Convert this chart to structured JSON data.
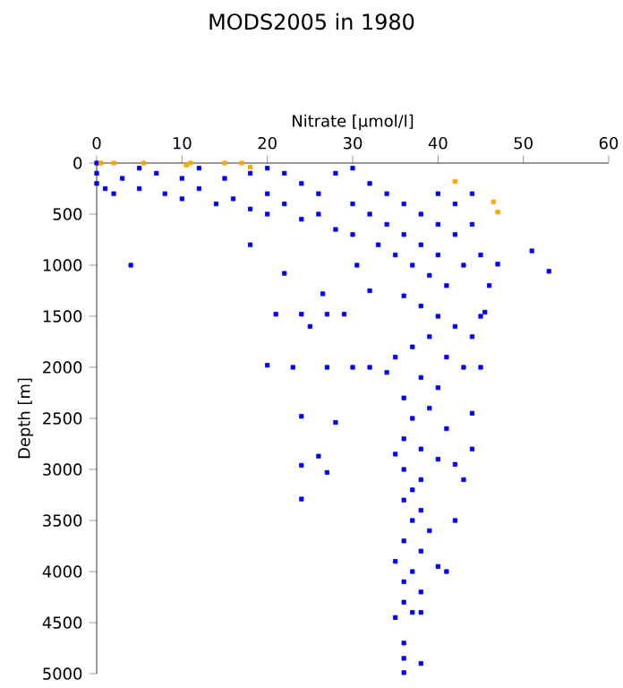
{
  "chart_data": {
    "type": "scatter",
    "title": "MODS2005 in 1980",
    "xlabel": "Nitrate [µmol/l]",
    "ylabel": "Depth [m]",
    "xlim": [
      0,
      60
    ],
    "xticks": [
      0,
      10,
      20,
      30,
      40,
      50,
      60
    ],
    "ylim": [
      5000,
      0
    ],
    "yticks": [
      0,
      500,
      1000,
      1500,
      2000,
      2500,
      3000,
      3500,
      4000,
      4500,
      5000
    ],
    "marker": "square",
    "series": [
      {
        "color": "#0000ff",
        "x": [
          0,
          0,
          0,
          1,
          2,
          3,
          5,
          5,
          7,
          8,
          10,
          10,
          12,
          12,
          14,
          15,
          16,
          18,
          18,
          20,
          20,
          20,
          22,
          22,
          24,
          24,
          26,
          26,
          28,
          28,
          30,
          30,
          30,
          32,
          32,
          33,
          34,
          34,
          35,
          36,
          36,
          37,
          38,
          38,
          39,
          40,
          40,
          40,
          41,
          42,
          42,
          43,
          44,
          44,
          45,
          46,
          4,
          18,
          51,
          53,
          47,
          45.5,
          22,
          24,
          26.5,
          27,
          29,
          21,
          32,
          30.5,
          20,
          23,
          27,
          30,
          32,
          24,
          26,
          24,
          27,
          24,
          28,
          25,
          36,
          38,
          40,
          42,
          39,
          37,
          41,
          43,
          38,
          40,
          36,
          39,
          37,
          41,
          36,
          38,
          40,
          36,
          42,
          38,
          37,
          36,
          38,
          37,
          39,
          36,
          38,
          35,
          40,
          37,
          36,
          38,
          36,
          37,
          35,
          38,
          36,
          36,
          38,
          36,
          44,
          45,
          44,
          43,
          42,
          41,
          44,
          45,
          35,
          34,
          35
        ],
        "values": [
          0,
          100,
          200,
          250,
          300,
          150,
          50,
          250,
          100,
          300,
          150,
          350,
          50,
          250,
          400,
          150,
          350,
          100,
          450,
          50,
          300,
          500,
          100,
          400,
          200,
          550,
          300,
          500,
          100,
          650,
          50,
          400,
          700,
          200,
          500,
          800,
          300,
          600,
          900,
          400,
          700,
          1000,
          500,
          800,
          1100,
          300,
          600,
          900,
          1200,
          400,
          700,
          1000,
          300,
          600,
          900,
          1200,
          1000,
          800,
          860,
          1060,
          990,
          1460,
          1080,
          1480,
          1280,
          1480,
          1480,
          1480,
          1250,
          1000,
          1980,
          2000,
          2000,
          2000,
          2000,
          2480,
          2870,
          2960,
          3030,
          3290,
          2540,
          1600,
          1300,
          1400,
          1500,
          1600,
          1700,
          1800,
          1900,
          2000,
          2100,
          2200,
          2300,
          2400,
          2500,
          2600,
          2700,
          2800,
          2900,
          3000,
          2950,
          3100,
          3200,
          3300,
          3400,
          3500,
          3600,
          3700,
          3800,
          3900,
          3950,
          4000,
          4100,
          4200,
          4300,
          4400,
          4450,
          4400,
          4700,
          4850,
          4900,
          4990,
          2450,
          2000,
          2800,
          3100,
          3500,
          4000,
          1700,
          1500,
          1900,
          2050,
          2850
        ]
      },
      {
        "color": "#ffa500",
        "x": [
          0.5,
          2,
          5.5,
          10.5,
          11,
          15,
          17,
          18,
          42,
          46.5,
          47
        ],
        "values": [
          0,
          0,
          0,
          20,
          0,
          0,
          0,
          40,
          180,
          380,
          480
        ]
      }
    ]
  }
}
